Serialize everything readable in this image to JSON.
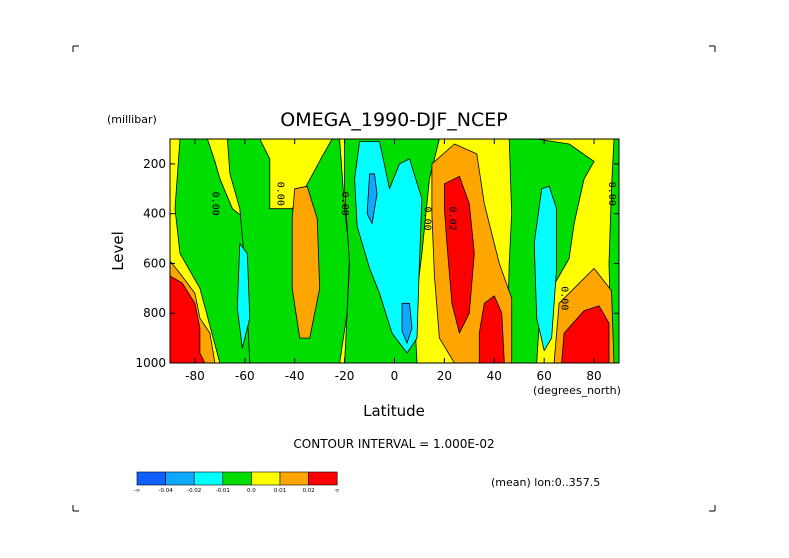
{
  "chart_data": {
    "type": "heatmap",
    "title": "OMEGA_1990-DJF_NCEP",
    "xlabel": "Latitude",
    "x_units": "(degrees_north)",
    "ylabel": "Level",
    "y_units": "(millibar)",
    "xlim": [
      -90,
      90
    ],
    "ylim": [
      1000,
      100
    ],
    "x_ticks": [
      -80,
      -60,
      -40,
      -20,
      0,
      20,
      40,
      60,
      80
    ],
    "x_tick_labels": [
      "-80",
      "-60",
      "-40",
      "-20",
      "0",
      "20",
      "40",
      "60",
      "80"
    ],
    "y_ticks": [
      200,
      400,
      600,
      800,
      1000
    ],
    "y_tick_labels": [
      "200",
      "400",
      "600",
      "800",
      "1000"
    ],
    "contour_interval_text": "CONTOUR INTERVAL = 1.000E-02",
    "mean_text": "(mean) lon:0..357.5",
    "colorbar": {
      "levels": [
        "-∞",
        "-0.04",
        "-0.02",
        "-0.01",
        "0.0",
        "0.01",
        "0.02",
        "∞"
      ],
      "colors": [
        "#1060ff",
        "#10a8ff",
        "#00ffff",
        "#00dd00",
        "#ffff00",
        "#ffa500",
        "#ff0000"
      ]
    },
    "contour_labels": [
      {
        "text": "0.00",
        "lat": -73,
        "p": 360
      },
      {
        "text": "0.00",
        "lat": -47,
        "p": 320
      },
      {
        "text": "0.00",
        "lat": -21,
        "p": 360
      },
      {
        "text": "0.00",
        "lat": 12,
        "p": 420
      },
      {
        "text": "0.02",
        "lat": 22,
        "p": 420
      },
      {
        "text": "0.00",
        "lat": 67,
        "p": 740
      },
      {
        "text": "0.00",
        "lat": 86,
        "p": 320
      }
    ],
    "regions": [
      {
        "value": "0.0 to 0.01",
        "color": "#ffff00",
        "polygon": [
          [
            -90,
            100
          ],
          [
            90,
            100
          ],
          [
            90,
            1000
          ],
          [
            -90,
            1000
          ]
        ]
      },
      {
        "value": "-0.01 to 0.0",
        "color": "#00dd00",
        "polygon": [
          [
            -86,
            100
          ],
          [
            -75,
            100
          ],
          [
            -72,
            190
          ],
          [
            -70,
            260
          ],
          [
            -65,
            380
          ],
          [
            -60,
            420
          ],
          [
            -57,
            660
          ],
          [
            -55,
            1000
          ],
          [
            -70,
            1000
          ],
          [
            -78,
            700
          ],
          [
            -86,
            560
          ],
          [
            -88,
            380
          ]
        ]
      },
      {
        "value": "-0.01 to 0.0",
        "color": "#00dd00",
        "polygon": [
          [
            -67,
            100
          ],
          [
            -54,
            100
          ],
          [
            -50,
            180
          ],
          [
            -50,
            380
          ],
          [
            -41,
            380
          ],
          [
            -36,
            300
          ],
          [
            -29,
            170
          ],
          [
            -25,
            100
          ],
          [
            -22,
            100
          ],
          [
            -20,
            380
          ],
          [
            -18,
            560
          ],
          [
            -19,
            800
          ],
          [
            -22,
            1000
          ],
          [
            -58,
            1000
          ],
          [
            -60,
            600
          ],
          [
            -62,
            380
          ],
          [
            -66,
            240
          ]
        ]
      },
      {
        "value": "-0.01 to 0.0",
        "color": "#00dd00",
        "polygon": [
          [
            -20,
            100
          ],
          [
            18,
            100
          ],
          [
            14,
            260
          ],
          [
            11,
            560
          ],
          [
            8,
            800
          ],
          [
            9,
            1000
          ],
          [
            -20,
            1000
          ],
          [
            -18,
            600
          ],
          [
            -20,
            300
          ]
        ]
      },
      {
        "value": "-0.01 to 0.0",
        "color": "#00dd00",
        "polygon": [
          [
            46,
            100
          ],
          [
            57,
            100
          ],
          [
            70,
            120
          ],
          [
            80,
            190
          ],
          [
            76,
            260
          ],
          [
            72,
            440
          ],
          [
            70,
            580
          ],
          [
            62,
            720
          ],
          [
            58,
            840
          ],
          [
            57,
            1000
          ],
          [
            45,
            1000
          ],
          [
            46,
            600
          ],
          [
            47,
            400
          ]
        ]
      },
      {
        "value": "-0.01 to 0.0",
        "color": "#00dd00",
        "polygon": [
          [
            88,
            100
          ],
          [
            90,
            100
          ],
          [
            90,
            1000
          ],
          [
            87,
            1000
          ],
          [
            86,
            600
          ],
          [
            87,
            300
          ]
        ]
      },
      {
        "value": "-0.02 to -0.01",
        "color": "#00ffff",
        "polygon": [
          [
            -14,
            110
          ],
          [
            -6,
            110
          ],
          [
            -2,
            300
          ],
          [
            2,
            200
          ],
          [
            6,
            180
          ],
          [
            11,
            340
          ],
          [
            10,
            600
          ],
          [
            9,
            900
          ],
          [
            5,
            960
          ],
          [
            -1,
            880
          ],
          [
            -6,
            720
          ],
          [
            -10,
            620
          ],
          [
            -15,
            450
          ],
          [
            -16,
            260
          ]
        ]
      },
      {
        "value": "-0.02 to -0.01",
        "color": "#00ffff",
        "polygon": [
          [
            -62,
            520
          ],
          [
            -59,
            560
          ],
          [
            -58,
            820
          ],
          [
            -61,
            940
          ],
          [
            -63,
            780
          ]
        ]
      },
      {
        "value": "-0.02 to -0.01",
        "color": "#00ffff",
        "polygon": [
          [
            59,
            300
          ],
          [
            62,
            290
          ],
          [
            65,
            380
          ],
          [
            65,
            620
          ],
          [
            63,
            900
          ],
          [
            60,
            950
          ],
          [
            57,
            820
          ],
          [
            56,
            520
          ]
        ]
      },
      {
        "value": "-0.04 to -0.02",
        "color": "#10a8ff",
        "polygon": [
          [
            -10,
            240
          ],
          [
            -8,
            240
          ],
          [
            -7,
            320
          ],
          [
            -9,
            440
          ],
          [
            -11,
            400
          ]
        ]
      },
      {
        "value": "-0.04 to -0.02",
        "color": "#10a8ff",
        "polygon": [
          [
            3,
            760
          ],
          [
            6,
            760
          ],
          [
            7,
            860
          ],
          [
            5,
            920
          ],
          [
            3,
            870
          ]
        ]
      },
      {
        "value": "0.01 to 0.02",
        "color": "#ffa500",
        "polygon": [
          [
            -90,
            590
          ],
          [
            -86,
            640
          ],
          [
            -80,
            720
          ],
          [
            -78,
            820
          ],
          [
            -74,
            880
          ],
          [
            -72,
            1000
          ],
          [
            -90,
            1000
          ]
        ]
      },
      {
        "value": "0.01 to 0.02",
        "color": "#ffa500",
        "polygon": [
          [
            -40,
            300
          ],
          [
            -35,
            290
          ],
          [
            -31,
            420
          ],
          [
            -30,
            700
          ],
          [
            -34,
            900
          ],
          [
            -38,
            900
          ],
          [
            -41,
            700
          ],
          [
            -41,
            420
          ]
        ]
      },
      {
        "value": "0.01 to 0.02",
        "color": "#ffa500",
        "polygon": [
          [
            15,
            200
          ],
          [
            24,
            120
          ],
          [
            33,
            160
          ],
          [
            36,
            360
          ],
          [
            42,
            600
          ],
          [
            47,
            740
          ],
          [
            47,
            1000
          ],
          [
            24,
            1000
          ],
          [
            18,
            900
          ],
          [
            16,
            650
          ],
          [
            15,
            400
          ]
        ]
      },
      {
        "value": "0.01 to 0.02",
        "color": "#ffa500",
        "polygon": [
          [
            66,
            760
          ],
          [
            72,
            700
          ],
          [
            80,
            620
          ],
          [
            87,
            710
          ],
          [
            88,
            1000
          ],
          [
            64,
            1000
          ]
        ]
      },
      {
        "value": ">0.02",
        "color": "#ff0000",
        "polygon": [
          [
            -90,
            650
          ],
          [
            -85,
            680
          ],
          [
            -80,
            760
          ],
          [
            -78,
            860
          ],
          [
            -78,
            960
          ],
          [
            -76,
            1000
          ],
          [
            -90,
            1000
          ]
        ]
      },
      {
        "value": ">0.02",
        "color": "#ff0000",
        "polygon": [
          [
            20,
            280
          ],
          [
            26,
            250
          ],
          [
            30,
            360
          ],
          [
            32,
            560
          ],
          [
            30,
            800
          ],
          [
            26,
            880
          ],
          [
            23,
            760
          ],
          [
            21,
            520
          ],
          [
            20,
            380
          ]
        ]
      },
      {
        "value": ">0.02",
        "color": "#ff0000",
        "polygon": [
          [
            36,
            760
          ],
          [
            40,
            730
          ],
          [
            43,
            800
          ],
          [
            44,
            1000
          ],
          [
            34,
            1000
          ],
          [
            34,
            880
          ]
        ]
      },
      {
        "value": ">0.02",
        "color": "#ff0000",
        "polygon": [
          [
            68,
            880
          ],
          [
            76,
            790
          ],
          [
            82,
            770
          ],
          [
            86,
            840
          ],
          [
            86,
            1000
          ],
          [
            67,
            1000
          ]
        ]
      }
    ]
  }
}
